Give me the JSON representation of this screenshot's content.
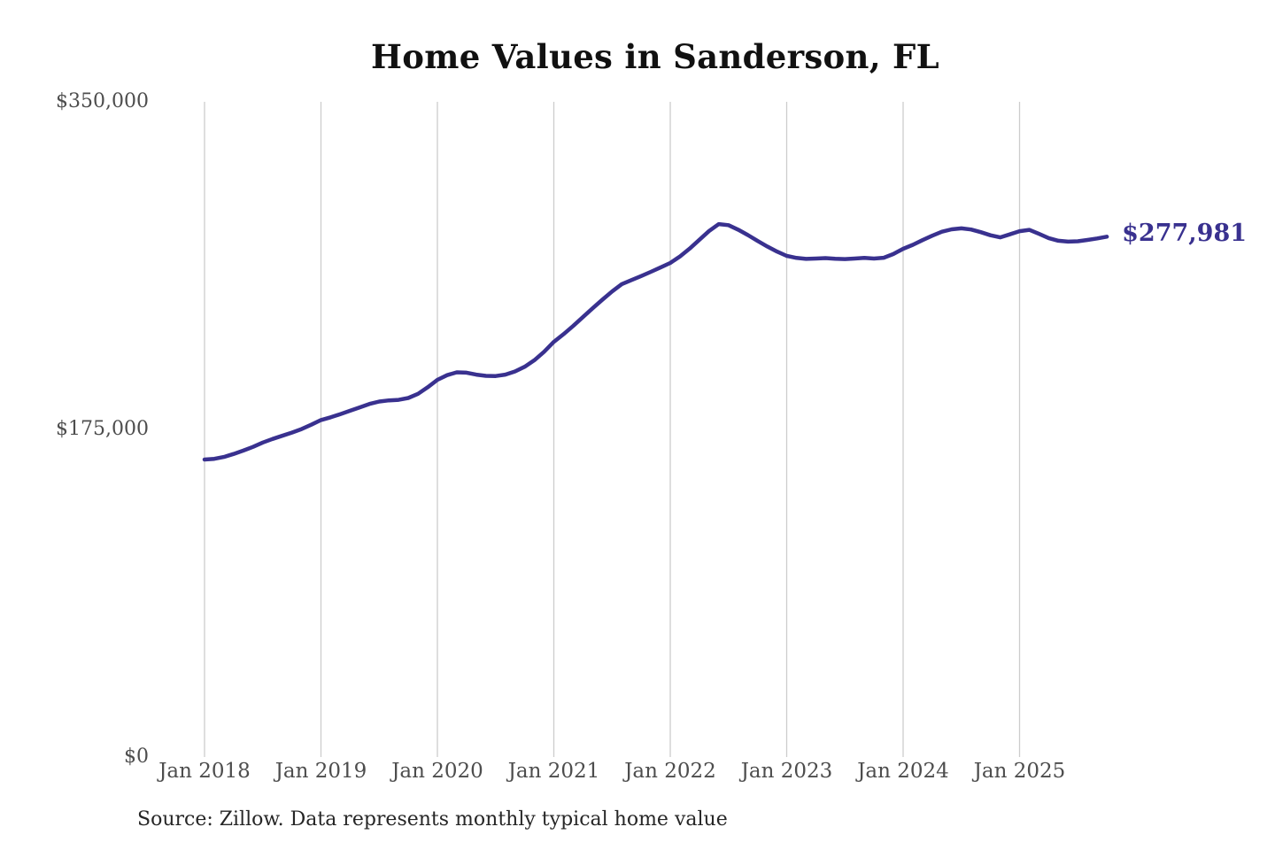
{
  "title": "Home Values in Sanderson, FL",
  "source_note": "Source: Zillow. Data represents monthly typical home value",
  "colors": {
    "line": "#39318f",
    "gridline": "#cccccc",
    "title_text": "#111111",
    "axis_text": "#4d4d4d",
    "latest_label_text": "#39318f",
    "background": "#ffffff"
  },
  "chart_data": {
    "type": "line",
    "title": "Home Values in Sanderson, FL",
    "xlabel": "",
    "ylabel": "",
    "ylim": [
      0,
      350000
    ],
    "grid": "vertical-only",
    "legend": "none",
    "y_ticks": [
      {
        "value": 0,
        "label": "$0"
      },
      {
        "value": 175000,
        "label": "$175,000"
      },
      {
        "value": 350000,
        "label": "$350,000"
      }
    ],
    "x_ticks": [
      {
        "month_index": 0,
        "label": "Jan 2018"
      },
      {
        "month_index": 12,
        "label": "Jan 2019"
      },
      {
        "month_index": 24,
        "label": "Jan 2020"
      },
      {
        "month_index": 36,
        "label": "Jan 2021"
      },
      {
        "month_index": 48,
        "label": "Jan 2022"
      },
      {
        "month_index": 60,
        "label": "Jan 2023"
      },
      {
        "month_index": 72,
        "label": "Jan 2024"
      },
      {
        "month_index": 84,
        "label": "Jan 2025"
      }
    ],
    "x_start_month": "2018-01",
    "x_end_month": "2025-10",
    "latest_value": 277981,
    "latest_value_label": "$277,981",
    "series": [
      {
        "name": "Monthly typical home value",
        "monthly_values": [
          158900,
          159300,
          160300,
          161900,
          163700,
          165700,
          168000,
          169900,
          171600,
          173300,
          175200,
          177500,
          180000,
          181500,
          183200,
          185000,
          186800,
          188600,
          189900,
          190500,
          190800,
          191800,
          194000,
          197500,
          201500,
          204000,
          205500,
          205300,
          204300,
          203600,
          203500,
          204300,
          206000,
          208500,
          212000,
          216500,
          221800,
          225900,
          230300,
          235000,
          239700,
          244300,
          248700,
          252600,
          254800,
          256900,
          259200,
          261500,
          263900,
          267400,
          271600,
          276300,
          281000,
          284700,
          284100,
          281700,
          278800,
          275700,
          272700,
          270000,
          267700,
          266600,
          266100,
          266300,
          266500,
          266200,
          266000,
          266300,
          266600,
          266300,
          266700,
          268700,
          271500,
          273600,
          276100,
          278500,
          280600,
          281900,
          282400,
          281800,
          280400,
          278700,
          277600,
          279200,
          280900,
          281600,
          279500,
          277200,
          275800,
          275300,
          275500,
          276200,
          277000,
          277981
        ]
      }
    ]
  }
}
